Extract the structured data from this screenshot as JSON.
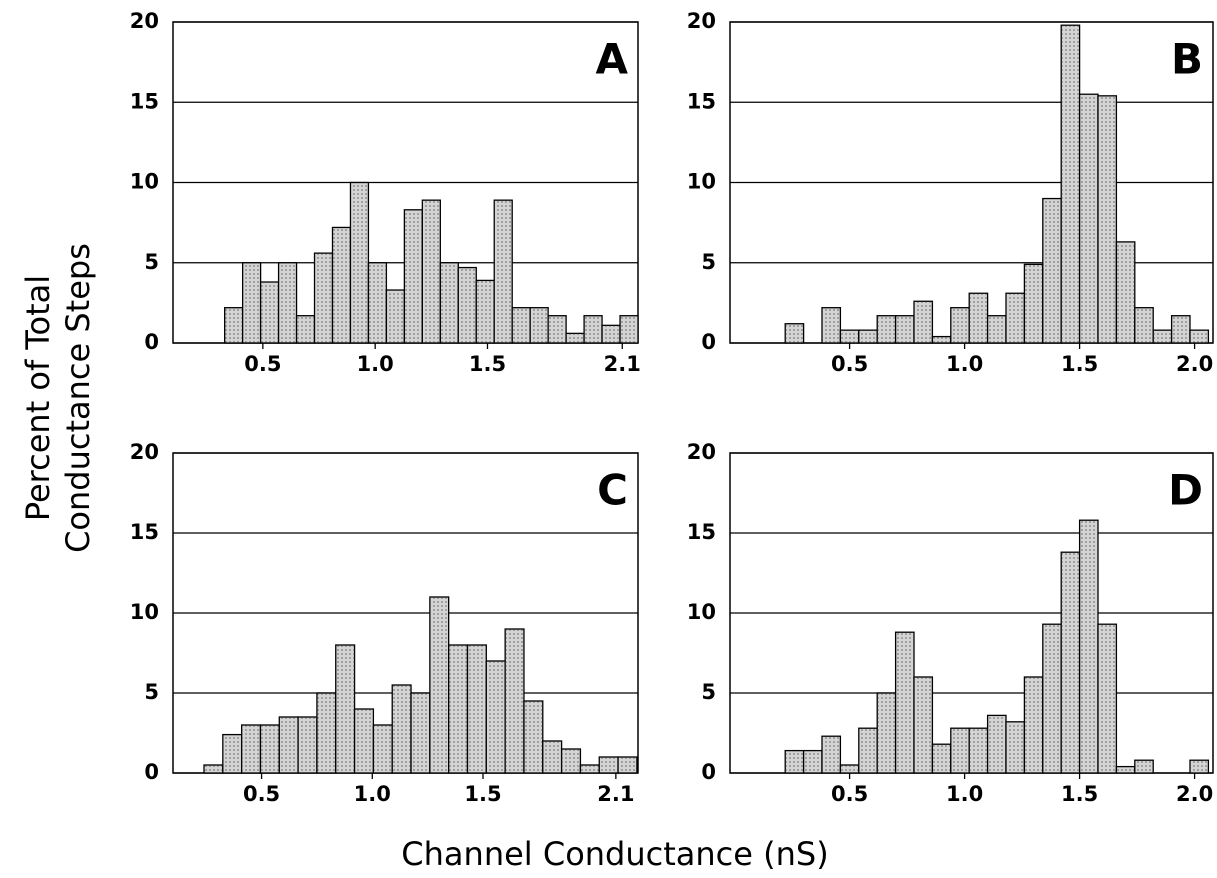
{
  "ylabel": [
    "Percent of Total",
    "Conductance Steps"
  ],
  "xlabel": "Channel Conductance (nS)",
  "chart_data": [
    {
      "type": "histogram",
      "title": "A",
      "color": "#d4d4d4",
      "grid": true,
      "bins": [
        0.33,
        0.41,
        0.49,
        0.57,
        0.65,
        0.73,
        0.81,
        0.89,
        0.97,
        1.05,
        1.13,
        1.21,
        1.29,
        1.37,
        1.45,
        1.53,
        1.61,
        1.69,
        1.77,
        1.85,
        1.93,
        2.01,
        2.09,
        2.17
      ],
      "values": [
        2.2,
        5,
        3.8,
        5,
        1.7,
        5.6,
        7.2,
        10,
        5,
        3.3,
        8.3,
        8.9,
        5,
        4.7,
        3.9,
        8.9,
        2.2,
        2.2,
        1.7,
        0.6,
        1.7,
        1.1,
        1.7
      ],
      "xlim": [
        0.1,
        2.17
      ],
      "xticks": [
        0.5,
        {
          "value": 1.0,
          "label": "1.0"
        },
        1.5,
        2.1
      ],
      "ylim": [
        0,
        20
      ],
      "yticks": [
        0,
        5,
        10,
        15,
        20
      ]
    },
    {
      "type": "histogram",
      "title": "B",
      "color": "#d4d4d4",
      "grid": true,
      "bins": [
        0.22,
        0.3,
        0.38,
        0.46,
        0.54,
        0.62,
        0.7,
        0.78,
        0.86,
        0.94,
        1.02,
        1.1,
        1.18,
        1.26,
        1.34,
        1.42,
        1.5,
        1.58,
        1.66,
        1.74,
        1.82,
        1.9,
        1.98,
        2.06
      ],
      "values": [
        1.2,
        0,
        2.2,
        0.8,
        0.8,
        1.7,
        1.7,
        2.6,
        0.4,
        2.2,
        3.1,
        1.7,
        3.1,
        4.9,
        9,
        19.8,
        15.5,
        15.4,
        6.3,
        2.2,
        0.8,
        1.7,
        0.8
      ],
      "xlim": [
        -0.02,
        2.08
      ],
      "xticks": [
        0.5,
        {
          "value": 1.0,
          "label": "1.0"
        },
        1.5,
        {
          "value": 2.0,
          "label": "2.0"
        }
      ],
      "ylim": [
        0,
        20
      ],
      "yticks": [
        0,
        5,
        10,
        15,
        20
      ]
    },
    {
      "type": "histogram",
      "title": "C",
      "color": "#d4d4d4",
      "grid": true,
      "bins": [
        0.24,
        0.325,
        0.41,
        0.495,
        0.58,
        0.665,
        0.75,
        0.835,
        0.92,
        1.005,
        1.09,
        1.175,
        1.26,
        1.345,
        1.43,
        1.515,
        1.6,
        1.685,
        1.77,
        1.855,
        1.94,
        2.025,
        2.11,
        2.195
      ],
      "values": [
        0.5,
        2.4,
        3,
        3,
        3.5,
        3.5,
        5,
        8,
        4,
        3,
        5.5,
        5,
        11,
        8,
        8,
        7,
        9,
        4.5,
        2,
        1.5,
        0.5,
        1,
        1
      ],
      "xlim": [
        0.1,
        2.2
      ],
      "xticks": [
        0.5,
        {
          "value": 1.0,
          "label": "1.0"
        },
        1.5,
        2.1
      ],
      "ylim": [
        0,
        20
      ],
      "yticks": [
        0,
        5,
        10,
        15,
        20
      ]
    },
    {
      "type": "histogram",
      "title": "D",
      "color": "#d4d4d4",
      "grid": true,
      "bins": [
        0.22,
        0.3,
        0.38,
        0.46,
        0.54,
        0.62,
        0.7,
        0.78,
        0.86,
        0.94,
        1.02,
        1.1,
        1.18,
        1.26,
        1.34,
        1.42,
        1.5,
        1.58,
        1.66,
        1.74,
        1.82,
        1.9,
        1.98,
        2.06
      ],
      "values": [
        1.4,
        1.4,
        2.3,
        0.5,
        2.8,
        5,
        8.8,
        6,
        1.8,
        2.8,
        2.8,
        3.6,
        3.2,
        6,
        9.3,
        13.8,
        15.8,
        9.3,
        0.4,
        0.8,
        0,
        0,
        0.8
      ],
      "xlim": [
        -0.02,
        2.08
      ],
      "xticks": [
        0.5,
        {
          "value": 1.0,
          "label": "1.0"
        },
        1.5,
        {
          "value": 2.0,
          "label": "2.0"
        }
      ],
      "ylim": [
        0,
        20
      ],
      "yticks": [
        0,
        5,
        10,
        15,
        20
      ]
    }
  ]
}
